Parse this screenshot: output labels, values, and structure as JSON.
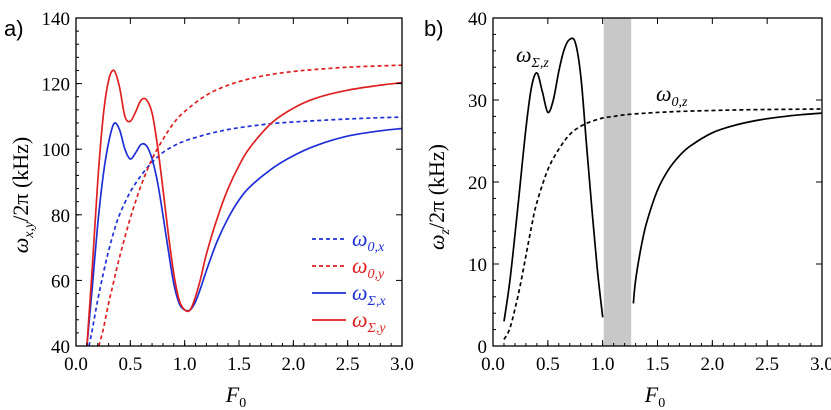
{
  "chart_data": [
    {
      "panel": "a)",
      "type": "line",
      "xlabel": "F",
      "xlabel_sub": "0",
      "ylabel": "ω",
      "ylabel_sub": "x,y",
      "ylabel_rest": "/2π (kHz)",
      "xlim": [
        0,
        3
      ],
      "ylim": [
        40,
        140
      ],
      "xticks": [
        "0.0",
        "0.5",
        "1.0",
        "1.5",
        "2.0",
        "2.5",
        "3.0"
      ],
      "xtick_values": [
        0,
        0.5,
        1,
        1.5,
        2,
        2.5,
        3
      ],
      "yticks": [
        "40",
        "60",
        "80",
        "100",
        "120",
        "140"
      ],
      "ytick_values": [
        40,
        60,
        80,
        100,
        120,
        140
      ],
      "legend_position": "bottom-right",
      "series": [
        {
          "name": "ω",
          "sub": "0,x",
          "color": "#1f2fd6",
          "dash": "4,3",
          "x": [
            0.12,
            0.15,
            0.2,
            0.25,
            0.3,
            0.35,
            0.4,
            0.5,
            0.6,
            0.7,
            0.8,
            0.9,
            1.0,
            1.2,
            1.4,
            1.6,
            1.8,
            2.0,
            2.2,
            2.5,
            2.8,
            3.0
          ],
          "y": [
            40,
            45,
            54,
            62,
            69,
            75,
            80,
            87,
            92,
            96,
            99,
            101,
            102.5,
            104.5,
            106,
            107,
            107.8,
            108.3,
            108.7,
            109.2,
            109.6,
            109.8
          ]
        },
        {
          "name": "ω",
          "sub": "0,y",
          "color": "#e02020",
          "dash": "4,3",
          "x": [
            0.21,
            0.25,
            0.3,
            0.35,
            0.4,
            0.5,
            0.6,
            0.7,
            0.8,
            0.9,
            1.0,
            1.2,
            1.4,
            1.6,
            1.8,
            2.0,
            2.2,
            2.5,
            2.8,
            3.0
          ],
          "y": [
            40,
            45,
            53,
            60,
            67,
            79,
            89,
            97,
            103,
            108,
            111.5,
            116.5,
            119.5,
            121.5,
            122.8,
            123.7,
            124.3,
            125,
            125.4,
            125.6
          ]
        },
        {
          "name": "ω",
          "sub": "Σ,x",
          "color": "#1f2fd6",
          "dash": "",
          "x": [
            0.1,
            0.15,
            0.2,
            0.25,
            0.3,
            0.35,
            0.4,
            0.45,
            0.5,
            0.55,
            0.6,
            0.65,
            0.7,
            0.75,
            0.8,
            0.85,
            0.9,
            0.95,
            1.0,
            1.05,
            1.1,
            1.15,
            1.2,
            1.3,
            1.4,
            1.5,
            1.6,
            1.8,
            2.0,
            2.2,
            2.5,
            2.8,
            3.0
          ],
          "y": [
            40,
            58,
            77,
            92,
            102,
            107.8,
            106,
            100,
            97,
            99,
            101.5,
            101,
            97,
            90,
            80,
            69,
            59,
            53,
            51,
            51,
            53.5,
            58,
            63,
            72,
            79,
            84.5,
            88.5,
            94,
            98,
            101,
            104,
            105.6,
            106.3
          ]
        },
        {
          "name": "ω",
          "sub": "Σ,y",
          "color": "#e02020",
          "dash": "",
          "x": [
            0.1,
            0.15,
            0.2,
            0.25,
            0.3,
            0.35,
            0.4,
            0.45,
            0.5,
            0.55,
            0.6,
            0.65,
            0.7,
            0.75,
            0.8,
            0.85,
            0.9,
            0.95,
            1.0,
            1.05,
            1.1,
            1.15,
            1.2,
            1.3,
            1.4,
            1.5,
            1.6,
            1.8,
            2.0,
            2.2,
            2.5,
            2.8,
            3.0
          ],
          "y": [
            40,
            64,
            90,
            110,
            121,
            124,
            119,
            110,
            108.5,
            111.5,
            115,
            115,
            111,
            101,
            88,
            74,
            62,
            54,
            51,
            51,
            55,
            61,
            68,
            79,
            88,
            95,
            100.5,
            108,
            112.5,
            115.5,
            118,
            119.5,
            120.3
          ]
        }
      ]
    },
    {
      "panel": "b)",
      "type": "line",
      "xlabel": "F",
      "xlabel_sub": "0",
      "ylabel": "ω",
      "ylabel_sub": "z",
      "ylabel_rest": "/2π (kHz)",
      "xlim": [
        0,
        3
      ],
      "ylim": [
        0,
        40
      ],
      "xticks": [
        "0.0",
        "0.5",
        "1.0",
        "1.5",
        "2.0",
        "2.5",
        "3.0"
      ],
      "xtick_values": [
        0,
        0.5,
        1,
        1.5,
        2,
        2.5,
        3
      ],
      "yticks": [
        "0",
        "10",
        "20",
        "30",
        "40"
      ],
      "ytick_values": [
        0,
        10,
        20,
        30,
        40
      ],
      "shaded_region": {
        "x_from": 1.01,
        "x_to": 1.26,
        "color": "#c8c8c8"
      },
      "series": [
        {
          "name": "ω",
          "sub": "0,z",
          "color": "#000000",
          "dash": "4,3",
          "x": [
            0.1,
            0.15,
            0.2,
            0.25,
            0.3,
            0.35,
            0.4,
            0.5,
            0.6,
            0.7,
            0.8,
            0.9,
            1.0,
            1.1,
            1.2,
            1.4,
            1.6,
            1.8,
            2.0,
            2.2,
            2.5,
            2.8,
            3.0
          ],
          "y": [
            0.8,
            2,
            4.5,
            7.5,
            11,
            14.5,
            17.5,
            21.5,
            24,
            25.8,
            26.8,
            27.4,
            27.8,
            28,
            28.2,
            28.4,
            28.55,
            28.65,
            28.72,
            28.78,
            28.84,
            28.88,
            28.9
          ]
        },
        {
          "name": "ω",
          "sub": "Σ,z",
          "color": "#000000",
          "dash": "",
          "x": [
            0.1,
            0.15,
            0.2,
            0.25,
            0.3,
            0.35,
            0.4,
            0.45,
            0.5,
            0.55,
            0.6,
            0.65,
            0.7,
            0.75,
            0.8,
            0.85,
            0.9,
            0.95,
            1.0
          ],
          "y": [
            3,
            7.5,
            13.5,
            20,
            26.5,
            31.5,
            33.3,
            31,
            28.5,
            30,
            33.5,
            36.2,
            37.4,
            37,
            33,
            25,
            17,
            9.5,
            3.5
          ]
        },
        {
          "name": "",
          "sub": "",
          "color": "#000000",
          "dash": "",
          "x": [
            1.28,
            1.3,
            1.35,
            1.4,
            1.5,
            1.6,
            1.7,
            1.8,
            2.0,
            2.2,
            2.4,
            2.6,
            2.8,
            3.0
          ],
          "y": [
            5.2,
            8,
            12,
            15,
            19,
            21.5,
            23.2,
            24.4,
            26,
            26.9,
            27.5,
            27.9,
            28.2,
            28.4
          ]
        }
      ],
      "annotations": [
        {
          "text": "ω",
          "sub": "Σ,z"
        },
        {
          "text": "ω",
          "sub": "0,z"
        }
      ]
    }
  ]
}
